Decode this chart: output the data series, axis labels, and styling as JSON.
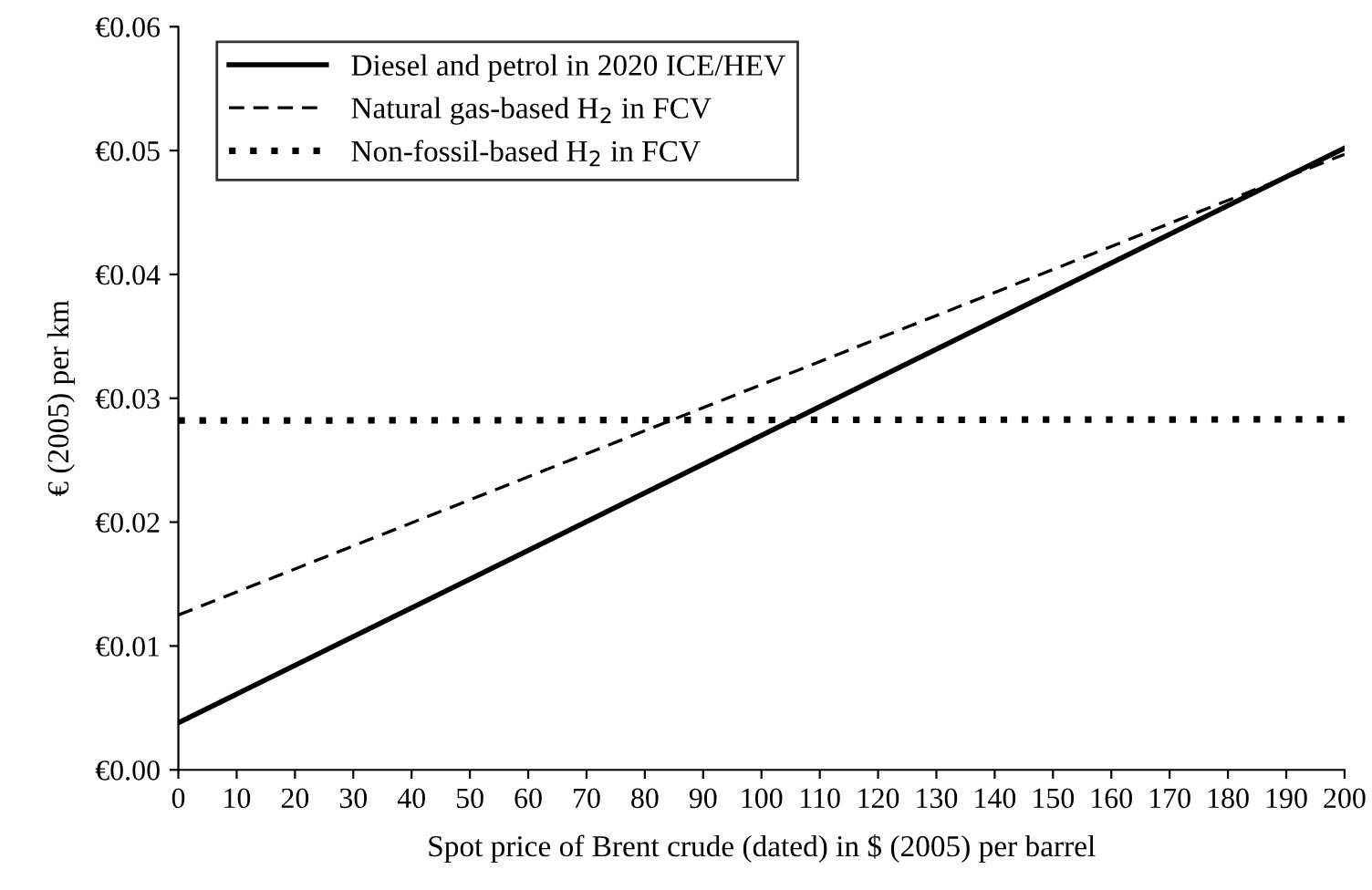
{
  "chart_data": {
    "type": "line",
    "xlabel": "Spot price of Brent crude (dated) in $ (2005) per barrel",
    "ylabel": "€ (2005) per km",
    "x": [
      0,
      200
    ],
    "series": [
      {
        "name": "Diesel and petrol in 2020 ICE/HEV",
        "color": "#000000",
        "values": [
          0.0038,
          0.0502
        ],
        "line_style": "solid"
      },
      {
        "name": "Natural gas-based H$_{2}$ in FCV",
        "color": "#000000",
        "values": [
          0.0125,
          0.0497
        ],
        "line_style": "dashed"
      },
      {
        "name": "Non-fossil-based H$_{2}$ in FCV",
        "color": "#000000",
        "values": [
          0.0282,
          0.0283
        ],
        "line_style": "dotted"
      }
    ],
    "xlim": [
      0,
      200
    ],
    "xticks": [
      0,
      10,
      20,
      30,
      40,
      50,
      60,
      70,
      80,
      90,
      100,
      110,
      120,
      130,
      140,
      150,
      160,
      170,
      180,
      190,
      200
    ],
    "ylim": [
      0,
      0.06
    ],
    "yticks": [
      {
        "value": 0,
        "label": "€0.00"
      },
      {
        "value": 0.01,
        "label": "€0.01"
      },
      {
        "value": 0.02,
        "label": "€0.02"
      },
      {
        "value": 0.03,
        "label": "€0.03"
      },
      {
        "value": 0.04,
        "label": "€0.04"
      },
      {
        "value": 0.05,
        "label": "€0.05"
      },
      {
        "value": 0.06,
        "label": "€0.06"
      }
    ],
    "legend": "top left",
    "grid": false,
    "marker": "none"
  }
}
